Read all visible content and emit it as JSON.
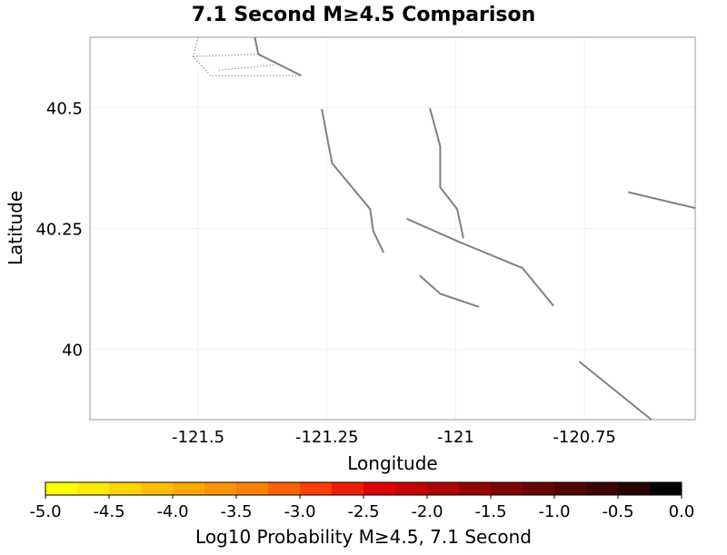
{
  "chart_data": {
    "type": "heatmap",
    "title": "7.1 Second M≥4.5 Comparison",
    "xlabel": "Longitude",
    "ylabel": "Latitude",
    "xlim": [
      -121.71,
      -120.535
    ],
    "ylim": [
      39.855,
      40.645
    ],
    "xticks": [
      {
        "value": -121.5,
        "label": "-121.5"
      },
      {
        "value": -121.25,
        "label": "-121.25"
      },
      {
        "value": -121.0,
        "label": "-121"
      },
      {
        "value": -120.75,
        "label": "-120.75"
      }
    ],
    "yticks": [
      {
        "value": 40.5,
        "label": "40.5"
      },
      {
        "value": 40.25,
        "label": "40.25"
      },
      {
        "value": 40.0,
        "label": "40"
      }
    ],
    "grid": true,
    "faults": [
      {
        "style": "solid",
        "points": [
          [
            -121.39,
            40.645
          ],
          [
            -121.383,
            40.61
          ],
          [
            -121.3,
            40.566
          ]
        ]
      },
      {
        "style": "solid",
        "points": [
          [
            -121.26,
            40.497
          ],
          [
            -121.24,
            40.385
          ],
          [
            -121.166,
            40.29
          ],
          [
            -121.16,
            40.245
          ],
          [
            -121.14,
            40.2
          ]
        ]
      },
      {
        "style": "solid",
        "points": [
          [
            -121.05,
            40.498
          ],
          [
            -121.03,
            40.42
          ],
          [
            -121.03,
            40.335
          ],
          [
            -120.997,
            40.29
          ],
          [
            -120.985,
            40.23
          ]
        ]
      },
      {
        "style": "solid",
        "points": [
          [
            -121.095,
            40.27
          ],
          [
            -120.995,
            40.223
          ],
          [
            -120.87,
            40.168
          ],
          [
            -120.81,
            40.09
          ]
        ]
      },
      {
        "style": "solid",
        "points": [
          [
            -121.07,
            40.153
          ],
          [
            -121.03,
            40.115
          ],
          [
            -120.955,
            40.088
          ]
        ]
      },
      {
        "style": "solid",
        "points": [
          [
            -120.665,
            40.325
          ],
          [
            -120.535,
            40.292
          ]
        ]
      },
      {
        "style": "solid",
        "points": [
          [
            -120.76,
            39.975
          ],
          [
            -120.62,
            39.855
          ]
        ]
      },
      {
        "style": "dotted",
        "points": [
          [
            -121.5,
            40.645
          ],
          [
            -121.51,
            40.605
          ],
          [
            -121.475,
            40.565
          ],
          [
            -121.3,
            40.566
          ]
        ]
      },
      {
        "style": "dotted",
        "points": [
          [
            -121.51,
            40.605
          ],
          [
            -121.383,
            40.61
          ]
        ]
      },
      {
        "style": "dotted",
        "points": [
          [
            -121.46,
            40.577
          ],
          [
            -121.35,
            40.588
          ]
        ]
      }
    ]
  },
  "colorbar": {
    "label": "Log10 Probability M≥4.5, 7.1 Second",
    "min": -5.0,
    "max": 0.0,
    "ticks": [
      "-5.0",
      "-4.5",
      "-4.0",
      "-3.5",
      "-3.0",
      "-2.5",
      "-2.0",
      "-1.5",
      "-1.0",
      "-0.5",
      "0.0"
    ],
    "colors": [
      "#ffff00",
      "#ffea00",
      "#ffd400",
      "#ffbf00",
      "#ffaa00",
      "#ff9500",
      "#ff8000",
      "#ff6000",
      "#ff3f00",
      "#f01e00",
      "#e00000",
      "#c80000",
      "#b00000",
      "#980000",
      "#800000",
      "#6a0000",
      "#540000",
      "#3e0000",
      "#280000",
      "#000000"
    ]
  }
}
